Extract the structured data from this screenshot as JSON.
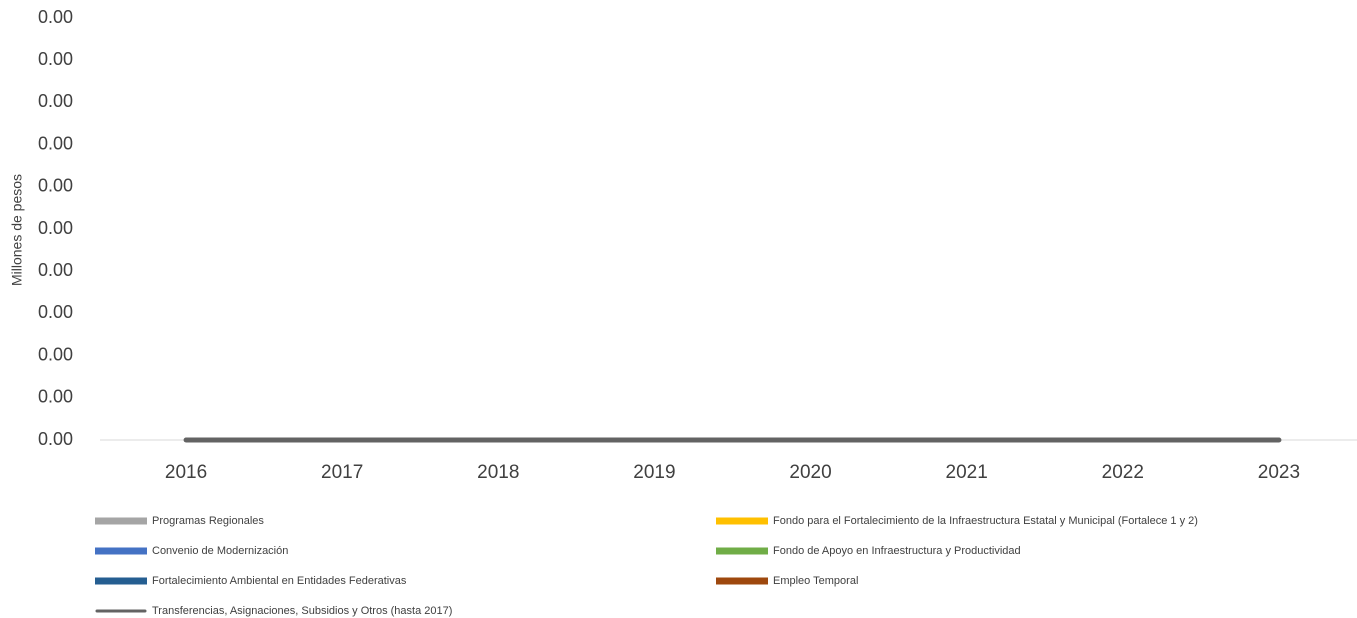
{
  "chart_data": {
    "type": "bar",
    "stacked": true,
    "y_label": "Millones de pesos",
    "categories": [
      "2016",
      "2017",
      "2018",
      "2019",
      "2020",
      "2021",
      "2022",
      "2023"
    ],
    "series": [
      {
        "name": "Programas Regionales",
        "type": "bar",
        "color": "#a5a5a5",
        "values": [
          0,
          0,
          0,
          0,
          0,
          0,
          0,
          0
        ]
      },
      {
        "name": "Fondo para el Fortalecimiento de la Infraestructura Estatal y Municipal (Fortalece 1 y 2)",
        "type": "bar",
        "color": "#ffc000",
        "values": [
          0,
          0,
          0,
          0,
          0,
          0,
          0,
          0
        ]
      },
      {
        "name": "Convenio de Modernización",
        "type": "bar",
        "color": "#4472c4",
        "values": [
          0,
          0,
          0,
          0,
          0,
          0,
          0,
          0
        ]
      },
      {
        "name": "Fondo de Apoyo en Infraestructura y Productividad",
        "type": "bar",
        "color": "#70ad47",
        "values": [
          0,
          0,
          0,
          0,
          0,
          0,
          0,
          0
        ]
      },
      {
        "name": "Fortalecimiento Ambiental en Entidades Federativas",
        "type": "bar",
        "color": "#255e91",
        "values": [
          0,
          0,
          0,
          0,
          0,
          0,
          0,
          0
        ]
      },
      {
        "name": "Empleo Temporal",
        "type": "bar",
        "color": "#9e480e",
        "values": [
          0,
          0,
          0,
          0,
          0,
          0,
          0,
          0
        ]
      },
      {
        "name": "Transferencias, Asignaciones, Subsidios y Otros (hasta 2017)",
        "type": "line",
        "color": "#636363",
        "values": [
          0,
          0,
          0,
          0,
          0,
          0,
          0,
          0
        ]
      }
    ],
    "ylim": [
      0,
      0.001
    ],
    "yticks": [
      {
        "value": 0,
        "label": "0.00"
      },
      {
        "value": 0.0001,
        "label": "0.00"
      },
      {
        "value": 0.0002,
        "label": "0.00"
      },
      {
        "value": 0.0003,
        "label": "0.00"
      },
      {
        "value": 0.0004,
        "label": "0.00"
      },
      {
        "value": 0.0005,
        "label": "0.00"
      },
      {
        "value": 0.0006,
        "label": "0.00"
      },
      {
        "value": 0.0007,
        "label": "0.00"
      },
      {
        "value": 0.0008,
        "label": "0.00"
      },
      {
        "value": 0.0009,
        "label": "0.00"
      },
      {
        "value": 0.001,
        "label": "0.00"
      }
    ],
    "grid": false,
    "legend": "bottom"
  }
}
